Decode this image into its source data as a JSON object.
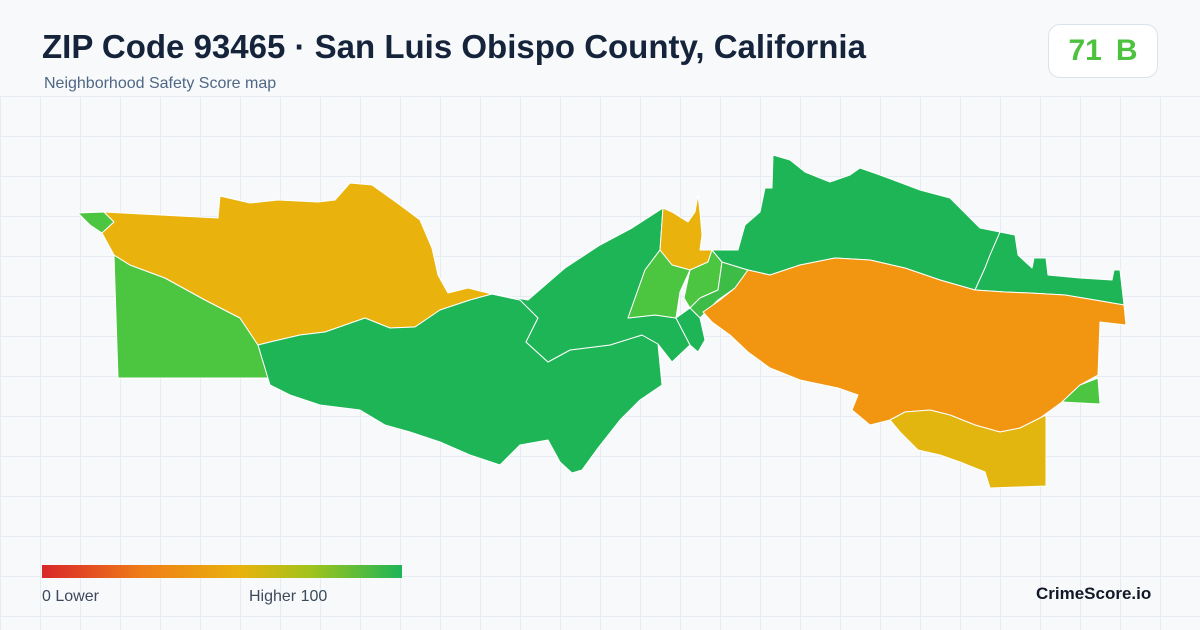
{
  "header": {
    "title": "ZIP Code 93465 · San Luis Obispo County, California",
    "subtitle": "Neighborhood Safety Score map"
  },
  "score": {
    "value": "71",
    "grade": "B",
    "color": "#4cc23f"
  },
  "legend": {
    "min_label": "0  Lower",
    "max_label": "Higher  100",
    "min_color": "#d9262a",
    "max_color": "#1db556"
  },
  "brand": "CrimeScore.io",
  "colors": {
    "green": "#1db556",
    "light_green": "#4cc540",
    "yellow_orange": "#e9b20c",
    "orange": "#f29611",
    "yellow": "#e2b60e"
  }
}
